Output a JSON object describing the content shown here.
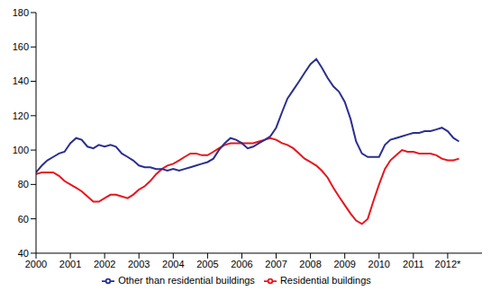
{
  "chart_data": {
    "type": "line",
    "x": [
      2000,
      2000.17,
      2000.33,
      2000.5,
      2000.67,
      2000.83,
      2001,
      2001.17,
      2001.33,
      2001.5,
      2001.67,
      2001.83,
      2002,
      2002.17,
      2002.33,
      2002.5,
      2002.67,
      2002.83,
      2003,
      2003.17,
      2003.33,
      2003.5,
      2003.67,
      2003.83,
      2004,
      2004.17,
      2004.33,
      2004.5,
      2004.67,
      2004.83,
      2005,
      2005.17,
      2005.33,
      2005.5,
      2005.67,
      2005.83,
      2006,
      2006.17,
      2006.33,
      2006.5,
      2006.67,
      2006.83,
      2007,
      2007.17,
      2007.33,
      2007.5,
      2007.67,
      2007.83,
      2008,
      2008.17,
      2008.33,
      2008.5,
      2008.67,
      2008.83,
      2009,
      2009.17,
      2009.33,
      2009.5,
      2009.67,
      2009.83,
      2010,
      2010.17,
      2010.33,
      2010.5,
      2010.67,
      2010.83,
      2011,
      2011.17,
      2011.33,
      2011.5,
      2011.67,
      2011.83,
      2012,
      2012.17,
      2012.33
    ],
    "series": [
      {
        "name": "Residential buildings",
        "color": "#e8141c",
        "values": [
          86,
          87,
          87,
          87,
          85,
          82,
          80,
          78,
          76,
          73,
          70,
          70,
          72,
          74,
          74,
          73,
          72,
          74,
          77,
          79,
          82,
          86,
          89,
          91,
          92,
          94,
          96,
          98,
          98,
          97,
          97,
          99,
          101,
          103,
          104,
          104,
          104,
          104,
          104,
          105,
          106,
          107,
          106,
          104,
          103,
          101,
          98,
          95,
          93,
          91,
          88,
          84,
          78,
          73,
          68,
          63,
          59,
          57,
          60,
          70,
          80,
          89,
          94,
          97,
          100,
          99,
          99,
          98,
          98,
          98,
          97,
          95,
          94,
          94,
          95
        ]
      },
      {
        "name": "Other than residential buildings",
        "color": "#2b2f8f",
        "values": [
          87,
          91,
          94,
          96,
          98,
          99,
          104,
          107,
          106,
          102,
          101,
          103,
          102,
          103,
          102,
          98,
          96,
          94,
          91,
          90,
          90,
          89,
          89,
          88,
          89,
          88,
          89,
          90,
          91,
          92,
          93,
          95,
          100,
          104,
          107,
          106,
          104,
          101,
          102,
          104,
          106,
          108,
          113,
          122,
          130,
          135,
          140,
          145,
          150,
          153,
          148,
          142,
          137,
          134,
          128,
          118,
          105,
          98,
          96,
          96,
          96,
          103,
          106,
          107,
          108,
          109,
          110,
          110,
          111,
          111,
          112,
          113,
          111,
          107,
          105
        ]
      }
    ],
    "xlim": [
      2000,
      2013
    ],
    "xticks": [
      2000,
      2001,
      2002,
      2003,
      2004,
      2005,
      2006,
      2007,
      2008,
      2009,
      2010,
      2011,
      {
        "value": 2012,
        "label": "2012*"
      }
    ],
    "ylim": [
      40,
      180
    ],
    "yticks": [
      40,
      60,
      80,
      100,
      120,
      140,
      160,
      180
    ],
    "grid": false,
    "legend": "bottom"
  }
}
